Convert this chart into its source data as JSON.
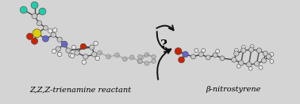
{
  "background_color": "#d4d4d4",
  "fig_width": 3.78,
  "fig_height": 1.32,
  "dpi": 100,
  "label_zzz": "Z,Z,Z-trienamine reactant",
  "label_beta": "β-nitrostyrene",
  "label_question": "?",
  "label_fontsize": 7.0,
  "question_fontsize": 11,
  "arrow_color": "#111111",
  "bond_color": "#3a3a3a",
  "C_color": "#c8c8c8",
  "N_color": "#6666cc",
  "O_color": "#cc2200",
  "S_color": "#ddcc00",
  "F_color": "#22ccaa",
  "H_color": "#e8e8e8"
}
